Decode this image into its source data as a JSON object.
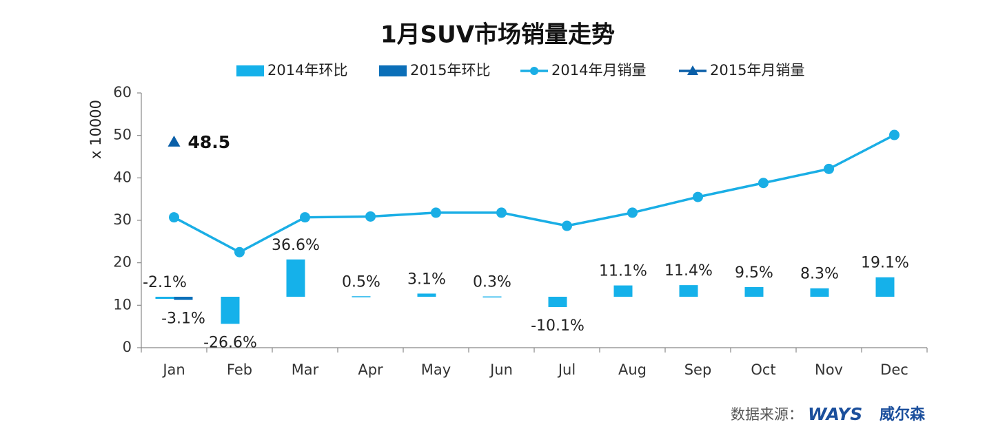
{
  "chart_data": {
    "type": "bar-line",
    "title": "1月SUV市场销量走势",
    "y_label": "x 10000",
    "categories": [
      "Jan",
      "Feb",
      "Mar",
      "Apr",
      "May",
      "Jun",
      "Jul",
      "Aug",
      "Sep",
      "Oct",
      "Nov",
      "Dec"
    ],
    "ylim": [
      0,
      60
    ],
    "yticks": [
      0,
      10,
      20,
      30,
      40,
      50,
      60
    ],
    "y2lim": [
      -50,
      200
    ],
    "grid": false,
    "legend": "top",
    "series": [
      {
        "name": "2014年环比",
        "type": "bar",
        "axis": "y2",
        "color": "#15b1ea",
        "values": [
          -2.1,
          -26.6,
          36.6,
          0.5,
          3.1,
          0.3,
          -10.1,
          11.1,
          11.4,
          9.5,
          8.3,
          19.1
        ],
        "value_labels": [
          "-2.1%",
          "-26.6%",
          "36.6%",
          "0.5%",
          "3.1%",
          "0.3%",
          "-10.1%",
          "11.1%",
          "11.4%",
          "9.5%",
          "8.3%",
          "19.1%"
        ]
      },
      {
        "name": "2015年环比",
        "type": "bar",
        "axis": "y2",
        "color": "#0b6fb8",
        "values": [
          -3.1,
          null,
          null,
          null,
          null,
          null,
          null,
          null,
          null,
          null,
          null,
          null
        ],
        "value_labels": [
          "-3.1%",
          null,
          null,
          null,
          null,
          null,
          null,
          null,
          null,
          null,
          null,
          null
        ]
      },
      {
        "name": "2014年月销量",
        "type": "line",
        "color": "#1aaee5",
        "marker": "circle",
        "values": [
          30.7,
          22.5,
          30.7,
          30.9,
          31.8,
          31.8,
          28.7,
          31.8,
          35.5,
          38.8,
          42.1,
          50.1
        ]
      },
      {
        "name": "2015年月销量",
        "type": "line",
        "color": "#0a5fa8",
        "marker": "triangle",
        "values": [
          48.5,
          null,
          null,
          null,
          null,
          null,
          null,
          null,
          null,
          null,
          null,
          null
        ],
        "value_labels": [
          "48.5",
          null,
          null,
          null,
          null,
          null,
          null,
          null,
          null,
          null,
          null,
          null
        ]
      }
    ]
  },
  "footer": {
    "source": "数据来源：",
    "brand": "WAYS",
    "brand_cn": "威尔森"
  }
}
